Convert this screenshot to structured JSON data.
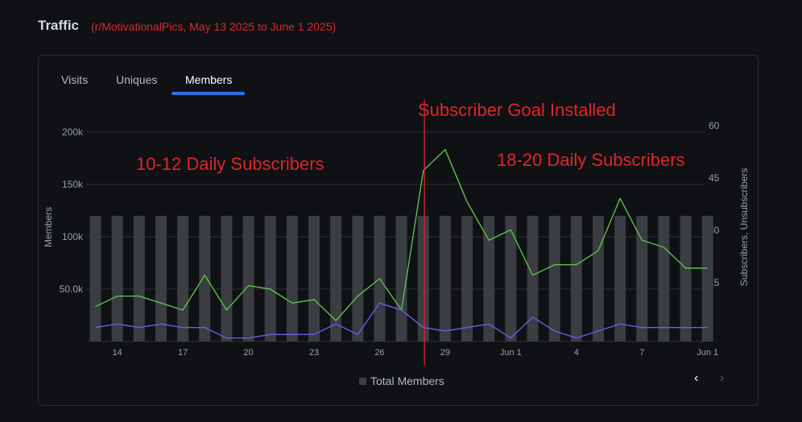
{
  "header": {
    "title": "Traffic",
    "subtitle": "(r/MotivationalPics, May 13 2025 to June 1 2025)"
  },
  "tabs": [
    {
      "label": "Visits",
      "active": false
    },
    {
      "label": "Uniques",
      "active": false
    },
    {
      "label": "Members",
      "active": true
    }
  ],
  "colors": {
    "bars": "#3a3d41",
    "subscribers": "#5fbf4e",
    "unsubscribers": "#6f5ce6",
    "annotation": "#e0242a",
    "grid": "#2c3035",
    "accent": "#2a71e6"
  },
  "annotations": {
    "goal_line_label": "Subscriber Goal Installed",
    "before_label": "10-12 Daily Subscribers",
    "after_label": "18-20 Daily Subscribers"
  },
  "legend": {
    "label": "Total Members"
  },
  "chart_data": {
    "type": "bar",
    "xlabel": "",
    "ylabel": "Members",
    "y2label": "Subscribers, Unsubscribers",
    "ylim": [
      0,
      200000
    ],
    "y2lim": [
      0,
      60
    ],
    "yticks": [
      "50.0k",
      "100k",
      "150k",
      "200k"
    ],
    "y2ticks": [
      "15",
      "30",
      "45",
      "60"
    ],
    "x_tick_labels": [
      "14",
      "17",
      "20",
      "23",
      "26",
      "29",
      "Jun 1",
      "4",
      "7",
      "Jun 1"
    ],
    "bar_count": 29,
    "bar_value": 120000,
    "goal_line_index": 15.05,
    "series": [
      {
        "values": [
          10,
          13,
          13,
          11,
          9,
          19,
          9,
          16,
          15,
          11,
          12,
          6,
          13,
          18,
          9,
          49,
          55,
          40,
          29,
          32,
          19,
          22,
          22,
          26,
          41,
          29,
          27,
          21,
          21
        ]
      },
      {
        "values": [
          4,
          5,
          4,
          5,
          4,
          4,
          1,
          1,
          2,
          2,
          2,
          5,
          2,
          11,
          9,
          4,
          3,
          4,
          5,
          1,
          7,
          3,
          1,
          3,
          5,
          4,
          4,
          4,
          4
        ]
      }
    ]
  }
}
